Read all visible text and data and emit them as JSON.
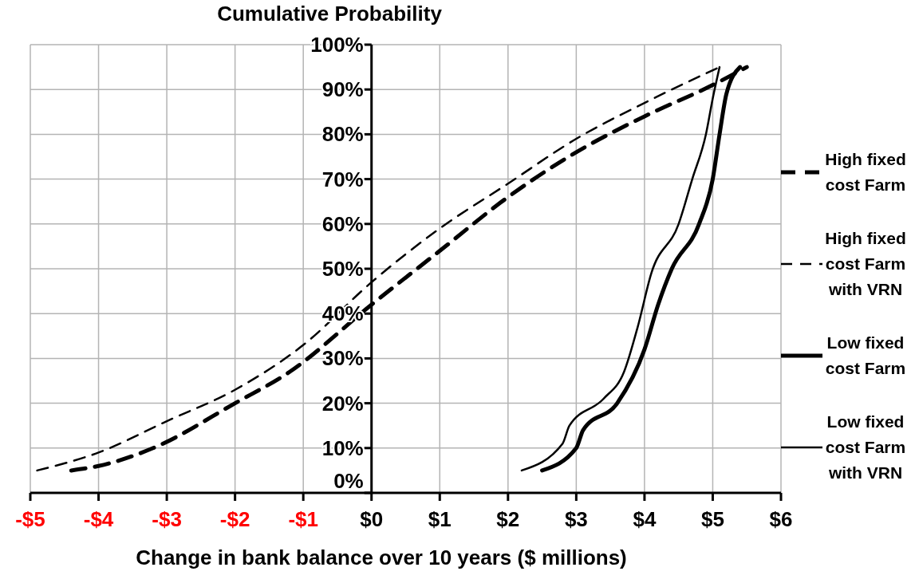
{
  "chart_data": {
    "type": "line",
    "ylabel": "Cumulative Probability",
    "xlabel": "Change in bank balance over 10 years ($ millions)",
    "xlim": [
      -5,
      6
    ],
    "xticks": [
      {
        "value": -5,
        "label": "-$5"
      },
      {
        "value": -4,
        "label": "-$4"
      },
      {
        "value": -3,
        "label": "-$3"
      },
      {
        "value": -2,
        "label": "-$2"
      },
      {
        "value": -1,
        "label": "-$1"
      },
      {
        "value": 0,
        "label": "$0"
      },
      {
        "value": 1,
        "label": "$1"
      },
      {
        "value": 2,
        "label": "$2"
      },
      {
        "value": 3,
        "label": "$3"
      },
      {
        "value": 4,
        "label": "$4"
      },
      {
        "value": 5,
        "label": "$5"
      },
      {
        "value": 6,
        "label": "$6"
      }
    ],
    "ylim": [
      0,
      100
    ],
    "yticks": [
      {
        "value": 0,
        "label": "0%"
      },
      {
        "value": 10,
        "label": "10%"
      },
      {
        "value": 20,
        "label": "20%"
      },
      {
        "value": 30,
        "label": "30%"
      },
      {
        "value": 40,
        "label": "40%"
      },
      {
        "value": 50,
        "label": "50%"
      },
      {
        "value": 60,
        "label": "60%"
      },
      {
        "value": 70,
        "label": "70%"
      },
      {
        "value": 80,
        "label": "80%"
      },
      {
        "value": 90,
        "label": "90%"
      },
      {
        "value": 100,
        "label": "100%"
      }
    ],
    "grid": true,
    "legend": "right",
    "marker": "none",
    "series": [
      {
        "name": "High fixed cost Farm",
        "color": "#000000",
        "line_style": "dashed",
        "x": [
          -4.4,
          -4,
          -3.2,
          -2,
          -1.2,
          0,
          1,
          2,
          3,
          4,
          5,
          5.5
        ],
        "values": [
          5,
          6,
          10,
          20,
          27,
          42,
          54,
          66,
          76,
          84,
          91,
          95
        ]
      },
      {
        "name": "High fixed cost Farm with VRN",
        "color": "#000000",
        "line_style": "dashed",
        "x": [
          -4.9,
          -4,
          -3,
          -2,
          -1,
          0,
          1,
          2,
          3,
          4,
          5.1
        ],
        "values": [
          5,
          9,
          16,
          23,
          33,
          47,
          59,
          69,
          79,
          87,
          95
        ]
      },
      {
        "name": "Low fixed cost Farm",
        "color": "#000000",
        "line_style": "solid",
        "x": [
          2.5,
          3,
          3.1,
          3.6,
          4,
          4.2,
          4.4,
          4.8,
          5,
          5.1,
          5.2,
          5.4
        ],
        "values": [
          5,
          10,
          14,
          20,
          32,
          42,
          50,
          60,
          70,
          80,
          89,
          95
        ]
      },
      {
        "name": "Low fixed cost Farm with VRN",
        "color": "#000000",
        "line_style": "solid",
        "x": [
          2.2,
          2.8,
          2.9,
          3.4,
          3.7,
          3.9,
          4.1,
          4.5,
          4.7,
          4.9,
          5,
          5.1
        ],
        "values": [
          5,
          11,
          15,
          21,
          27,
          37,
          49,
          60,
          70,
          80,
          88,
          95
        ]
      }
    ]
  }
}
